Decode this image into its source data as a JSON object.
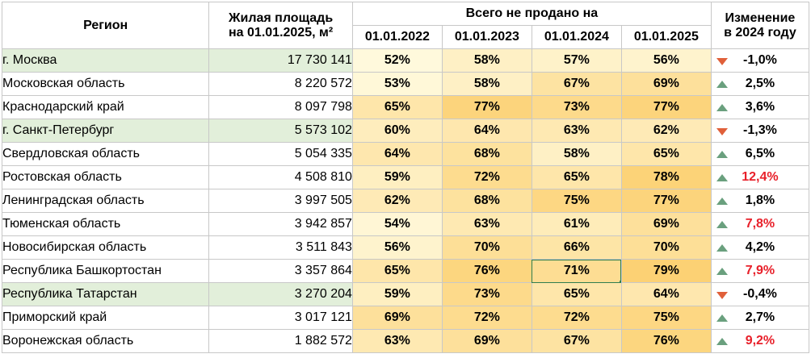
{
  "header": {
    "region": "Регион",
    "area_line1": "Жилая площадь",
    "area_line2": "на 01.01.2025, м²",
    "unsold": "Всего не продано на",
    "change_line1": "Изменение",
    "change_line2": "в 2024 году",
    "dates": [
      "01.01.2022",
      "01.01.2023",
      "01.01.2024",
      "01.01.2025"
    ]
  },
  "colors": {
    "green_row": "#e2efda",
    "arrow_up": "#6aa07e",
    "arrow_down": "#e0603a",
    "red_text": "#e8202a"
  },
  "rows": [
    {
      "region": "г. Москва",
      "area": "17 730 141",
      "p2022": "52%",
      "p2023": "58%",
      "p2024": "57%",
      "p2025": "56%",
      "change": "-1,0%",
      "dir": "down",
      "red": false,
      "green": true
    },
    {
      "region": "Московская область",
      "area": "8 220 572",
      "p2022": "53%",
      "p2023": "58%",
      "p2024": "67%",
      "p2025": "69%",
      "change": "2,5%",
      "dir": "up",
      "red": false,
      "green": false
    },
    {
      "region": "Краснодарский край",
      "area": "8 097 798",
      "p2022": "65%",
      "p2023": "77%",
      "p2024": "73%",
      "p2025": "77%",
      "change": "3,6%",
      "dir": "up",
      "red": false,
      "green": false
    },
    {
      "region": "г. Санкт-Петербург",
      "area": "5 573 102",
      "p2022": "60%",
      "p2023": "64%",
      "p2024": "63%",
      "p2025": "62%",
      "change": "-1,3%",
      "dir": "down",
      "red": false,
      "green": true
    },
    {
      "region": "Свердловская область",
      "area": "5 054 335",
      "p2022": "64%",
      "p2023": "68%",
      "p2024": "58%",
      "p2025": "65%",
      "change": "6,5%",
      "dir": "up",
      "red": false,
      "green": false
    },
    {
      "region": "Ростовская область",
      "area": "4 508 810",
      "p2022": "59%",
      "p2023": "72%",
      "p2024": "65%",
      "p2025": "78%",
      "change": "12,4%",
      "dir": "up",
      "red": true,
      "green": false
    },
    {
      "region": "Ленинградская область",
      "area": "3 997 505",
      "p2022": "62%",
      "p2023": "68%",
      "p2024": "75%",
      "p2025": "77%",
      "change": "1,8%",
      "dir": "up",
      "red": false,
      "green": false
    },
    {
      "region": "Тюменская область",
      "area": "3 942 857",
      "p2022": "54%",
      "p2023": "63%",
      "p2024": "61%",
      "p2025": "69%",
      "change": "7,8%",
      "dir": "up",
      "red": true,
      "green": false
    },
    {
      "region": "Новосибирская область",
      "area": "3 511 843",
      "p2022": "56%",
      "p2023": "70%",
      "p2024": "66%",
      "p2025": "70%",
      "change": "4,2%",
      "dir": "up",
      "red": false,
      "green": false
    },
    {
      "region": "Республика Башкортостан",
      "area": "3 357 864",
      "p2022": "65%",
      "p2023": "76%",
      "p2024": "71%",
      "p2025": "79%",
      "change": "7,9%",
      "dir": "up",
      "red": true,
      "green": false
    },
    {
      "region": "Республика Татарстан",
      "area": "3 270 204",
      "p2022": "59%",
      "p2023": "73%",
      "p2024": "65%",
      "p2025": "64%",
      "change": "-0,4%",
      "dir": "down",
      "red": false,
      "green": true
    },
    {
      "region": "Приморский край",
      "area": "3 017 121",
      "p2022": "69%",
      "p2023": "72%",
      "p2024": "72%",
      "p2025": "75%",
      "change": "2,7%",
      "dir": "up",
      "red": false,
      "green": false
    },
    {
      "region": "Воронежская область",
      "area": "1 882 572",
      "p2022": "63%",
      "p2023": "69%",
      "p2024": "67%",
      "p2025": "76%",
      "change": "9,2%",
      "dir": "up",
      "red": true,
      "green": false
    }
  ]
}
